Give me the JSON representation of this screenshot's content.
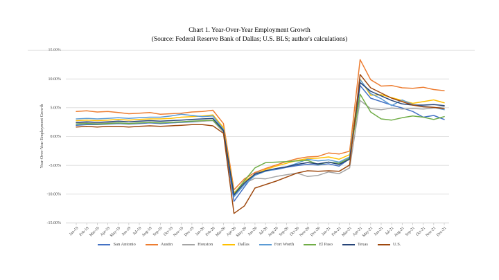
{
  "page": {
    "background": "#ffffff"
  },
  "chart_data": {
    "type": "line",
    "title": "Chart 1. Year-Over-Year Employment Growth",
    "subtitle": "(Source: Federal Reserve Bank of Dallas; U.S. BLS; author's calculations)",
    "ylabel": "Year-Over-Year Employment Growth",
    "ylim": [
      -15,
      15
    ],
    "ytick_step": 5,
    "ytick_format": "0.00%",
    "grid": true,
    "legend_position": "bottom",
    "gridline_color": "#d9d9d9",
    "axis_color": "#bfbfbf",
    "categories": [
      "Jan-19",
      "Feb-19",
      "Mar-19",
      "Apr-19",
      "May-19",
      "Jun-19",
      "Jul-19",
      "Aug-19",
      "Sep-19",
      "Oct-19",
      "Nov-19",
      "Dec-19",
      "Jan-20",
      "Feb-20",
      "Mar-20",
      "Apr-20",
      "May-20",
      "Jun-20",
      "Jul-20",
      "Aug-20",
      "Sep-20",
      "Oct-20",
      "Nov-20",
      "Dec-20",
      "Jan-21",
      "Feb-21",
      "Mar-21",
      "Apr-21",
      "May-21",
      "Jun-21",
      "Jul-21",
      "Aug-21",
      "Sep-21",
      "Oct-21",
      "Nov-21",
      "Dec-21"
    ],
    "series": [
      {
        "name": "San Antonio",
        "color": "#4472C4",
        "values": [
          1.9,
          2.0,
          2.0,
          2.1,
          2.2,
          2.1,
          2.2,
          2.3,
          2.2,
          2.3,
          2.4,
          2.5,
          2.6,
          2.8,
          0.8,
          -11.3,
          -8.8,
          -6.4,
          -6.0,
          -5.8,
          -5.4,
          -5.1,
          -4.9,
          -5.0,
          -4.8,
          -5.2,
          -3.9,
          8.8,
          6.6,
          6.0,
          5.4,
          4.9,
          4.3,
          3.3,
          3.6,
          2.9
        ]
      },
      {
        "name": "Austin",
        "color": "#ED7D31",
        "values": [
          4.3,
          4.4,
          4.2,
          4.3,
          4.1,
          3.9,
          4.0,
          4.1,
          3.8,
          3.9,
          4.0,
          4.2,
          4.3,
          4.5,
          2.2,
          -9.3,
          -7.4,
          -6.3,
          -5.6,
          -5.0,
          -4.4,
          -3.9,
          -3.6,
          -3.5,
          -2.9,
          -3.1,
          -2.6,
          13.3,
          9.8,
          8.7,
          8.8,
          8.4,
          8.3,
          8.5,
          8.1,
          7.9
        ]
      },
      {
        "name": "Houston",
        "color": "#A5A5A5",
        "values": [
          2.3,
          2.3,
          2.2,
          2.3,
          2.3,
          2.2,
          2.3,
          2.4,
          2.3,
          2.4,
          2.5,
          2.6,
          2.6,
          2.7,
          0.7,
          -9.8,
          -8.2,
          -7.3,
          -7.4,
          -7.0,
          -6.7,
          -6.4,
          -7.0,
          -6.8,
          -6.2,
          -6.5,
          -5.5,
          6.2,
          4.8,
          4.6,
          4.9,
          4.7,
          4.8,
          4.7,
          4.9,
          5.1
        ]
      },
      {
        "name": "Dallas",
        "color": "#FFC000",
        "values": [
          2.7,
          2.8,
          2.7,
          2.8,
          2.9,
          2.8,
          2.9,
          3.0,
          3.0,
          3.1,
          3.3,
          3.4,
          3.5,
          3.7,
          1.5,
          -9.9,
          -7.8,
          -6.6,
          -5.8,
          -5.2,
          -4.7,
          -4.2,
          -3.9,
          -3.8,
          -3.6,
          -4.0,
          -3.2,
          9.9,
          7.1,
          7.2,
          6.7,
          6.2,
          5.7,
          6.0,
          6.3,
          5.8
        ]
      },
      {
        "name": "Fort Worth",
        "color": "#5B9BD5",
        "values": [
          3.0,
          3.1,
          3.0,
          3.1,
          3.2,
          3.1,
          3.2,
          3.3,
          3.3,
          3.5,
          3.8,
          3.6,
          3.4,
          3.5,
          1.2,
          -10.5,
          -8.4,
          -6.8,
          -6.1,
          -5.7,
          -5.3,
          -4.7,
          -4.0,
          -4.3,
          -4.1,
          -4.5,
          -3.6,
          9.8,
          7.4,
          6.5,
          5.3,
          6.3,
          5.5,
          5.2,
          5.0,
          4.6
        ]
      },
      {
        "name": "El Paso",
        "color": "#70AD47",
        "values": [
          2.1,
          2.2,
          2.1,
          2.2,
          2.3,
          2.2,
          2.3,
          2.4,
          2.3,
          2.4,
          2.5,
          2.6,
          2.7,
          2.8,
          0.9,
          -10.1,
          -7.7,
          -5.5,
          -4.6,
          -4.5,
          -4.4,
          -4.3,
          -4.2,
          -4.9,
          -4.5,
          -4.7,
          -3.8,
          7.3,
          4.2,
          3.0,
          2.8,
          3.2,
          3.5,
          3.3,
          2.9,
          3.4
        ]
      },
      {
        "name": "Texas",
        "color": "#264478",
        "values": [
          2.4,
          2.5,
          2.4,
          2.5,
          2.6,
          2.5,
          2.6,
          2.7,
          2.6,
          2.7,
          2.8,
          2.9,
          3.0,
          3.1,
          1.0,
          -10.2,
          -8.1,
          -6.6,
          -6.0,
          -5.6,
          -5.3,
          -4.9,
          -4.6,
          -4.8,
          -4.5,
          -4.9,
          -4.0,
          9.3,
          7.8,
          7.0,
          6.2,
          5.6,
          5.4,
          5.4,
          5.5,
          5.3
        ]
      },
      {
        "name": "U.S.",
        "color": "#9E480E",
        "values": [
          1.6,
          1.7,
          1.6,
          1.7,
          1.7,
          1.6,
          1.7,
          1.8,
          1.7,
          1.8,
          1.9,
          2.0,
          2.0,
          1.8,
          0.5,
          -13.4,
          -12.1,
          -9.0,
          -8.4,
          -7.8,
          -7.1,
          -6.4,
          -6.0,
          -6.1,
          -6.0,
          -6.1,
          -5.0,
          10.7,
          8.4,
          7.5,
          6.6,
          6.0,
          5.4,
          5.1,
          5.0,
          4.8
        ]
      }
    ]
  }
}
